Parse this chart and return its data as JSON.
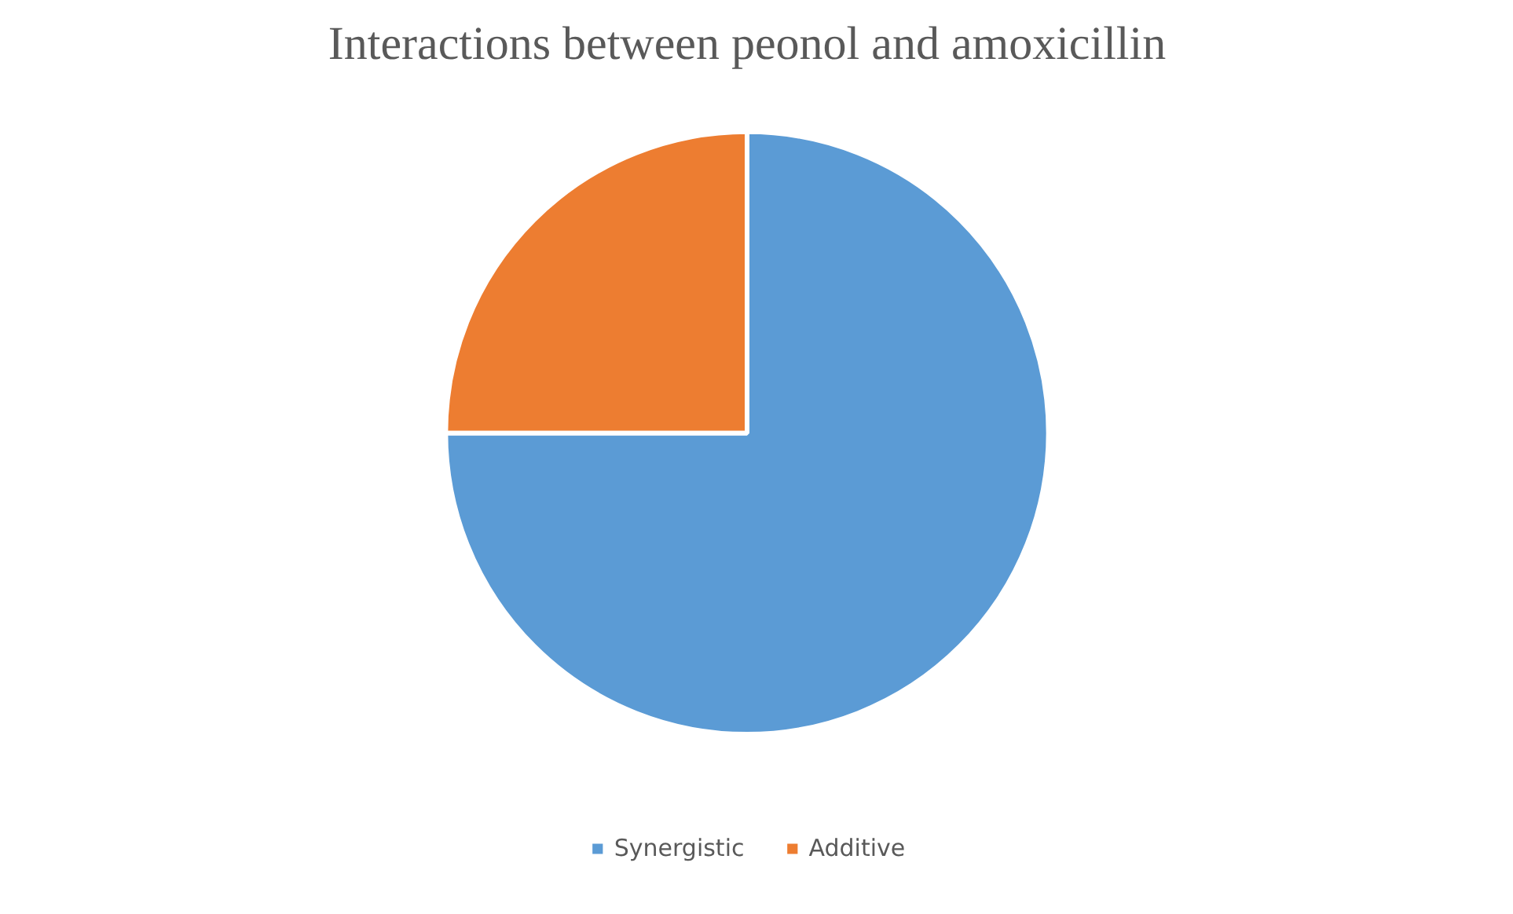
{
  "chart_data": {
    "type": "pie",
    "title": "Interactions between peonol and amoxicillin",
    "categories": [
      "Synergistic",
      "Additive"
    ],
    "values": [
      75,
      25
    ],
    "colors": [
      "#5b9bd5",
      "#ed7d31"
    ],
    "legend": "bottom"
  }
}
